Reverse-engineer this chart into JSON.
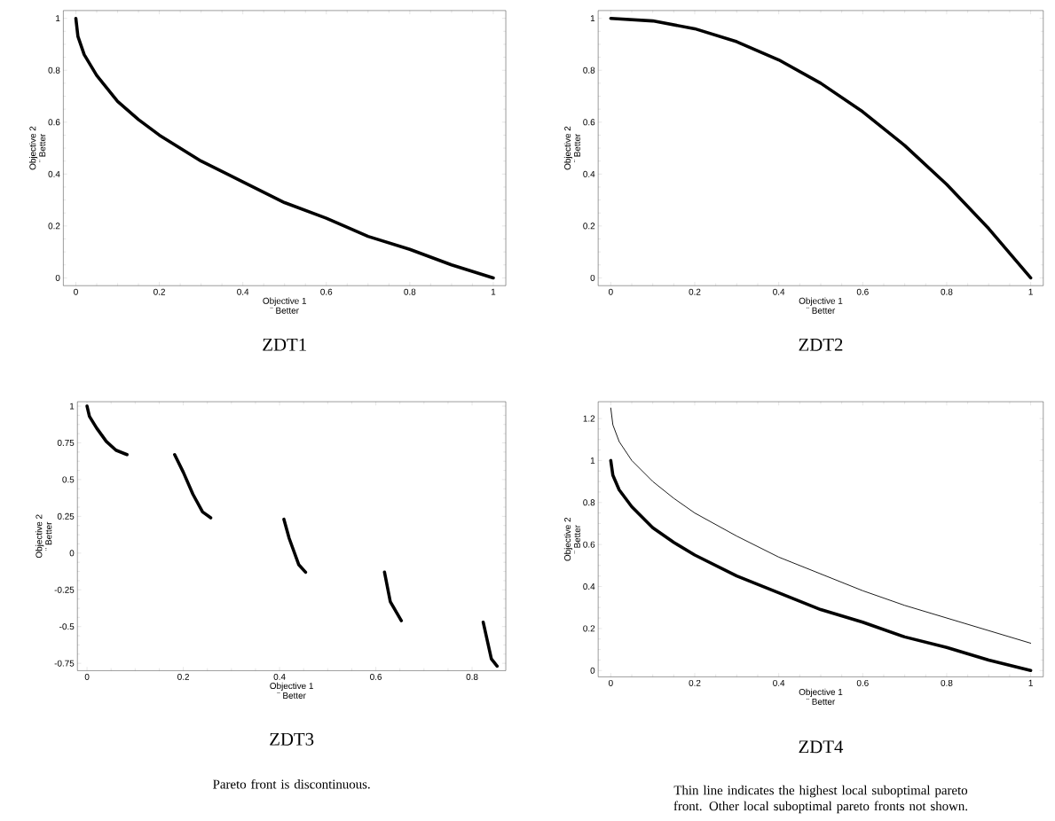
{
  "chart_data": [
    {
      "type": "line",
      "title": "ZDT1",
      "xlabel": "Objective 1",
      "ylabel": "Objective 2",
      "annotations": [
        "¨ Better",
        "¨ Better"
      ],
      "xlim": [
        -0.03,
        1.03
      ],
      "ylim": [
        -0.03,
        1.03
      ],
      "xticks": [
        0,
        0.2,
        0.4,
        0.6,
        0.8,
        1
      ],
      "yticks": [
        0,
        0.2,
        0.4,
        0.6,
        0.8,
        1
      ],
      "x": [
        0,
        0.005,
        0.02,
        0.05,
        0.1,
        0.15,
        0.2,
        0.3,
        0.4,
        0.5,
        0.6,
        0.7,
        0.8,
        0.9,
        1
      ],
      "series": [
        {
          "color": "#000000",
          "values": [
            1,
            0.93,
            0.86,
            0.78,
            0.68,
            0.61,
            0.55,
            0.45,
            0.37,
            0.29,
            0.23,
            0.16,
            0.11,
            0.05,
            0
          ]
        }
      ]
    },
    {
      "type": "line",
      "title": "ZDT2",
      "xlabel": "Objective 1",
      "ylabel": "Objective 2",
      "annotations": [
        "¨ Better",
        "¨ Better"
      ],
      "xlim": [
        -0.03,
        1.03
      ],
      "ylim": [
        -0.03,
        1.03
      ],
      "xticks": [
        0,
        0.2,
        0.4,
        0.6,
        0.8,
        1
      ],
      "yticks": [
        0,
        0.2,
        0.4,
        0.6,
        0.8,
        1
      ],
      "x": [
        0,
        0.1,
        0.2,
        0.3,
        0.4,
        0.5,
        0.6,
        0.7,
        0.8,
        0.9,
        1
      ],
      "series": [
        {
          "color": "#000000",
          "values": [
            1,
            0.99,
            0.96,
            0.91,
            0.84,
            0.75,
            0.64,
            0.51,
            0.36,
            0.19,
            0
          ]
        }
      ]
    },
    {
      "type": "line",
      "title": "ZDT3",
      "xlabel": "Objective 1",
      "ylabel": "Objective 2",
      "annotations": [
        "¨ Better",
        "¨ Better",
        "Pareto front is discontinuous."
      ],
      "xlim": [
        -0.02,
        0.87
      ],
      "ylim": [
        -0.8,
        1.03
      ],
      "xticks": [
        0,
        0.2,
        0.4,
        0.6,
        0.8
      ],
      "yticks": [
        -0.75,
        -0.5,
        -0.25,
        0,
        0.25,
        0.5,
        0.75,
        1
      ],
      "x": [
        0,
        0.005,
        0.02,
        0.04,
        0.06,
        0.083,
        0.13,
        0.182,
        0.2,
        0.22,
        0.24,
        0.257,
        0.33,
        0.409,
        0.42,
        0.44,
        0.454,
        0.54,
        0.618,
        0.63,
        0.653,
        0.74,
        0.823,
        0.84,
        0.852
      ],
      "series": [
        {
          "color": "#000000",
          "values": [
            1,
            0.93,
            0.85,
            0.76,
            0.7,
            0.67,
            null,
            0.67,
            0.55,
            0.4,
            0.28,
            0.24,
            null,
            0.23,
            0.1,
            -0.08,
            -0.13,
            null,
            -0.13,
            -0.33,
            -0.46,
            null,
            -0.47,
            -0.72,
            -0.77
          ]
        }
      ]
    },
    {
      "type": "line",
      "title": "ZDT4",
      "xlabel": "Objective 1",
      "ylabel": "Objective 2",
      "annotations": [
        "¨ Better",
        "¨ Better",
        "Thin line indicates the highest local suboptimal pareto front. Other local suboptimal pareto fronts not shown."
      ],
      "xlim": [
        -0.03,
        1.03
      ],
      "ylim": [
        -0.03,
        1.28
      ],
      "xticks": [
        0,
        0.2,
        0.4,
        0.6,
        0.8,
        1
      ],
      "yticks": [
        0,
        0.2,
        0.4,
        0.6,
        0.8,
        1,
        1.2
      ],
      "x": [
        0,
        0.005,
        0.02,
        0.05,
        0.1,
        0.15,
        0.2,
        0.3,
        0.4,
        0.5,
        0.6,
        0.7,
        0.8,
        0.9,
        1
      ],
      "series": [
        {
          "color": "#000000",
          "values": [
            1,
            0.93,
            0.86,
            0.78,
            0.68,
            0.61,
            0.55,
            0.45,
            0.37,
            0.29,
            0.23,
            0.16,
            0.11,
            0.05,
            0
          ]
        },
        {
          "color": "#000000",
          "values": [
            1.25,
            1.17,
            1.09,
            1.0,
            0.9,
            0.82,
            0.75,
            0.64,
            0.54,
            0.46,
            0.38,
            0.31,
            0.25,
            0.19,
            0.13
          ]
        }
      ]
    }
  ]
}
